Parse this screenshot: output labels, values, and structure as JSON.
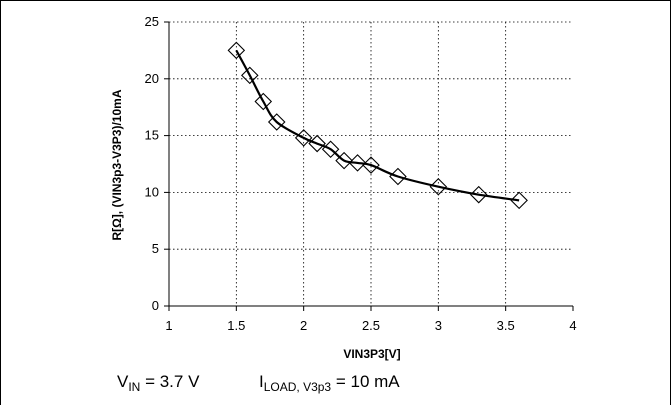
{
  "chart_data": {
    "type": "scatter",
    "xlabel": "VIN3P3[V]",
    "ylabel": "R[Ω], (VIN3p3-V3P3)/10mA",
    "xlim": [
      1,
      4
    ],
    "ylim": [
      0,
      25
    ],
    "xticks": [
      "1",
      "1.5",
      "2",
      "2.5",
      "3",
      "3.5",
      "4"
    ],
    "yticks": [
      "0",
      "5",
      "10",
      "15",
      "20",
      "25"
    ],
    "grid": true,
    "marker": "diamond-open",
    "trendline": true,
    "series": [
      {
        "x": [
          1.5,
          1.6,
          1.7,
          1.8,
          2.0,
          2.1,
          2.2,
          2.3,
          2.4,
          2.5,
          2.7,
          3.0,
          3.3,
          3.6
        ],
        "y": [
          22.5,
          20.3,
          18.0,
          16.2,
          14.8,
          14.3,
          13.8,
          12.8,
          12.6,
          12.4,
          11.4,
          10.5,
          9.8,
          9.3
        ]
      }
    ]
  },
  "conditions": {
    "vin_symbol": "V",
    "vin_sub": "IN",
    "vin_value": "= 3.7 V",
    "iload_symbol": "I",
    "iload_sub": "LOAD, V3p3",
    "iload_value": "= 10 mA"
  }
}
